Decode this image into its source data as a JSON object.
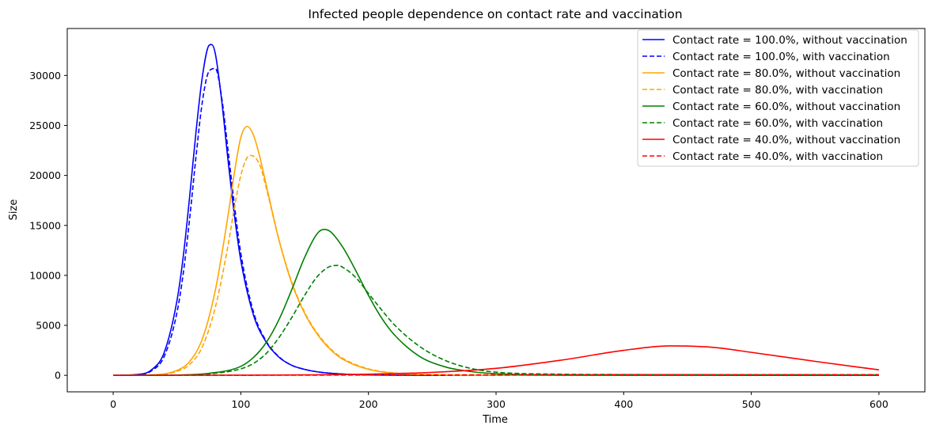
{
  "chart_data": {
    "type": "line",
    "title": "Infected people dependence on contact rate and vaccination",
    "xlabel": "Time",
    "ylabel": "Size",
    "xlim": [
      -36,
      636
    ],
    "ylim": [
      -1650,
      34700
    ],
    "xticks": [
      0,
      100,
      200,
      300,
      400,
      500,
      600
    ],
    "yticks": [
      0,
      5000,
      10000,
      15000,
      20000,
      25000,
      30000
    ],
    "grid": false,
    "legend_position": "top-right",
    "series": [
      {
        "name": "Contact rate = 100.0%, without vaccination",
        "color": "#0000ff",
        "dash": "solid",
        "x": [
          0,
          20,
          30,
          40,
          50,
          55,
          60,
          65,
          70,
          75,
          77,
          80,
          85,
          90,
          95,
          100,
          110,
          120,
          130,
          140,
          150,
          160,
          180,
          200,
          250,
          300,
          400,
          500,
          600
        ],
        "y": [
          0,
          100,
          550,
          2300,
          7500,
          12000,
          18000,
          24500,
          30000,
          33000,
          33100,
          32200,
          27500,
          21500,
          16000,
          11500,
          6000,
          3300,
          1800,
          1000,
          600,
          350,
          130,
          50,
          10,
          5,
          2,
          1,
          0
        ]
      },
      {
        "name": "Contact rate = 100.0%, with vaccination",
        "color": "#0000ff",
        "dash": "dashed",
        "x": [
          0,
          20,
          30,
          40,
          50,
          55,
          60,
          65,
          70,
          75,
          80,
          85,
          90,
          95,
          100,
          110,
          120,
          130,
          140,
          150,
          160,
          180,
          200,
          250,
          300,
          400,
          500,
          600
        ],
        "y": [
          0,
          80,
          450,
          1900,
          6300,
          10300,
          15800,
          22000,
          27500,
          30400,
          30700,
          27800,
          22500,
          17000,
          12200,
          6300,
          3400,
          1850,
          1000,
          600,
          350,
          130,
          50,
          10,
          5,
          2,
          1,
          0
        ]
      },
      {
        "name": "Contact rate = 80.0%, without vaccination",
        "color": "#ffa500",
        "dash": "solid",
        "x": [
          0,
          30,
          50,
          60,
          70,
          80,
          90,
          95,
          100,
          105,
          110,
          115,
          120,
          130,
          140,
          150,
          160,
          170,
          180,
          200,
          220,
          250,
          300,
          350,
          400,
          500,
          600
        ],
        "y": [
          0,
          50,
          500,
          1400,
          3700,
          8500,
          16000,
          20300,
          23800,
          24900,
          24000,
          21800,
          19000,
          13500,
          9200,
          6200,
          4100,
          2600,
          1600,
          600,
          220,
          60,
          10,
          5,
          2,
          1,
          0
        ]
      },
      {
        "name": "Contact rate = 80.0%, with vaccination",
        "color": "#ffa500",
        "dash": "dashed",
        "x": [
          0,
          30,
          50,
          60,
          70,
          80,
          90,
          95,
          100,
          105,
          108,
          115,
          120,
          130,
          140,
          150,
          160,
          170,
          180,
          200,
          220,
          250,
          300,
          350,
          400,
          500,
          600
        ],
        "y": [
          0,
          40,
          400,
          1100,
          2900,
          6800,
          13000,
          16800,
          20000,
          21800,
          22000,
          21000,
          18700,
          13500,
          9300,
          6300,
          4200,
          2700,
          1700,
          650,
          240,
          70,
          15,
          5,
          2,
          1,
          0
        ]
      },
      {
        "name": "Contact rate = 60.0%, without vaccination",
        "color": "#008000",
        "dash": "solid",
        "x": [
          0,
          50,
          75,
          100,
          110,
          120,
          130,
          140,
          150,
          160,
          165,
          170,
          180,
          190,
          200,
          210,
          220,
          240,
          260,
          280,
          300,
          350,
          400,
          500,
          600
        ],
        "y": [
          0,
          30,
          200,
          900,
          1800,
          3300,
          5600,
          8600,
          11800,
          14200,
          14600,
          14400,
          12800,
          10500,
          8000,
          5800,
          4100,
          1900,
          850,
          380,
          170,
          30,
          10,
          2,
          0
        ]
      },
      {
        "name": "Contact rate = 60.0%, with vaccination",
        "color": "#008000",
        "dash": "dashed",
        "x": [
          0,
          50,
          75,
          100,
          110,
          120,
          130,
          140,
          150,
          160,
          170,
          176,
          180,
          190,
          200,
          210,
          220,
          240,
          260,
          280,
          300,
          350,
          400,
          500,
          600
        ],
        "y": [
          0,
          25,
          150,
          650,
          1200,
          2200,
          3800,
          5800,
          8000,
          9900,
          10900,
          11000,
          10800,
          9800,
          8200,
          6600,
          5100,
          2900,
          1500,
          700,
          320,
          120,
          80,
          60,
          50
        ]
      },
      {
        "name": "Contact rate = 40.0%, without vaccination",
        "color": "#ff0000",
        "dash": "solid",
        "x": [
          0,
          100,
          200,
          250,
          300,
          350,
          400,
          437,
          470,
          500,
          550,
          600
        ],
        "y": [
          0,
          20,
          120,
          300,
          700,
          1500,
          2500,
          2950,
          2800,
          2300,
          1400,
          550
        ]
      },
      {
        "name": "Contact rate = 40.0%, with vaccination",
        "color": "#ff0000",
        "dash": "dashed",
        "x": [
          0,
          100,
          200,
          300,
          400,
          500,
          600
        ],
        "y": [
          0,
          10,
          30,
          50,
          65,
          70,
          70
        ]
      }
    ]
  }
}
